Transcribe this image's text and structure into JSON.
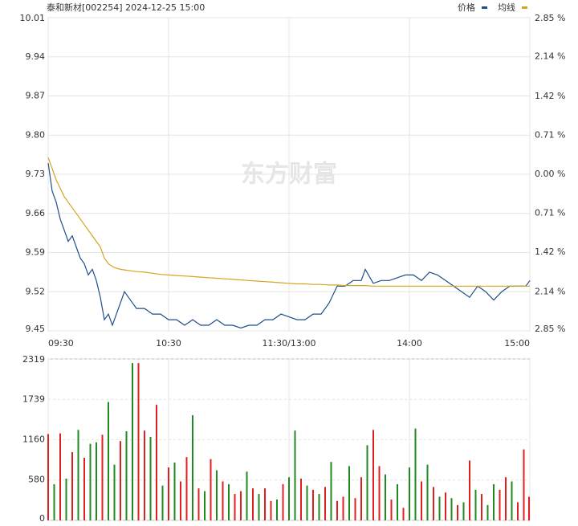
{
  "chart_data": [
    {
      "type": "line",
      "title": "泰和新材[002254] 2024-12-25 15:00",
      "watermark": "东方财富",
      "x": [
        0,
        2,
        4,
        6,
        8,
        10,
        12,
        14,
        16,
        18,
        20,
        22,
        24,
        26,
        28,
        30,
        32,
        34,
        36,
        38,
        40,
        44,
        48,
        52,
        56,
        60,
        64,
        68,
        72,
        76,
        80,
        84,
        88,
        92,
        96,
        100,
        104,
        108,
        112,
        116,
        120,
        124,
        128,
        132,
        136,
        140,
        144,
        148,
        152,
        156,
        158,
        162,
        166,
        170,
        174,
        178,
        182,
        186,
        190,
        194,
        198,
        202,
        206,
        210,
        214,
        218,
        222,
        226,
        230,
        234,
        238,
        240
      ],
      "xlim": [
        0,
        240
      ],
      "xticks": [
        {
          "value": 0,
          "label": "09:30"
        },
        {
          "value": 60,
          "label": "10:30"
        },
        {
          "value": 120,
          "label": "11:30/13:00"
        },
        {
          "value": 180,
          "label": "14:00"
        },
        {
          "value": 240,
          "label": "15:00"
        }
      ],
      "ylim": [
        9.45,
        10.01
      ],
      "yticks": [
        {
          "value": 10.01,
          "label": "10.01"
        },
        9.94,
        9.87,
        {
          "value": 9.8,
          "label": "9.80"
        },
        9.73,
        9.66,
        9.59,
        9.52,
        9.45
      ],
      "y2lim": [
        -2.85,
        2.85
      ],
      "y2ticks": [
        {
          "value": 2.85,
          "label": "2.85 %"
        },
        {
          "value": 2.14,
          "label": "2.14 %"
        },
        {
          "value": 1.42,
          "label": "1.42 %"
        },
        {
          "value": 0.71,
          "label": "0.71 %"
        },
        {
          "value": 0,
          "label": "0.00 %"
        },
        {
          "value": -0.71,
          "label": "0.71 %"
        },
        {
          "value": -1.42,
          "label": "1.42 %"
        },
        {
          "value": -2.14,
          "label": "2.14 %"
        },
        {
          "value": -2.85,
          "label": "2.85 %"
        }
      ],
      "up_color": "#e02020",
      "down_color": "#208a20",
      "flat_color": "#333333",
      "grid": true,
      "legend": "top-right",
      "series": [
        {
          "name": "价格",
          "color": "#1f4e8c",
          "values": [
            9.75,
            9.7,
            9.68,
            9.65,
            9.63,
            9.61,
            9.62,
            9.6,
            9.58,
            9.57,
            9.55,
            9.56,
            9.54,
            9.51,
            9.47,
            9.48,
            9.46,
            9.48,
            9.5,
            9.52,
            9.51,
            9.49,
            9.49,
            9.48,
            9.48,
            9.47,
            9.47,
            9.46,
            9.47,
            9.46,
            9.46,
            9.47,
            9.46,
            9.46,
            9.455,
            9.46,
            9.46,
            9.47,
            9.47,
            9.48,
            9.475,
            9.47,
            9.47,
            9.48,
            9.48,
            9.5,
            9.53,
            9.53,
            9.54,
            9.54,
            9.56,
            9.535,
            9.54,
            9.54,
            9.545,
            9.55,
            9.55,
            9.54,
            9.555,
            9.55,
            9.54,
            9.53,
            9.52,
            9.51,
            9.53,
            9.52,
            9.505,
            9.52,
            9.53,
            9.53,
            9.53,
            9.54
          ]
        },
        {
          "name": "均线",
          "color": "#d4a520",
          "values": [
            9.76,
            9.74,
            9.72,
            9.705,
            9.69,
            9.68,
            9.67,
            9.66,
            9.65,
            9.64,
            9.63,
            9.62,
            9.61,
            9.6,
            9.58,
            9.57,
            9.565,
            9.562,
            9.56,
            9.559,
            9.558,
            9.556,
            9.555,
            9.553,
            9.551,
            9.55,
            9.549,
            9.548,
            9.547,
            9.546,
            9.545,
            9.544,
            9.543,
            9.542,
            9.541,
            9.54,
            9.539,
            9.538,
            9.537,
            9.536,
            9.535,
            9.534,
            9.534,
            9.533,
            9.533,
            9.532,
            9.532,
            9.531,
            9.531,
            9.531,
            9.531,
            9.53,
            9.53,
            9.53,
            9.53,
            9.53,
            9.53,
            9.53,
            9.53,
            9.53,
            9.53,
            9.53,
            9.53,
            9.53,
            9.53,
            9.53,
            9.53,
            9.53,
            9.53,
            9.53,
            9.53,
            9.53
          ]
        }
      ]
    },
    {
      "type": "bar",
      "x": [
        0,
        3,
        6,
        9,
        12,
        15,
        18,
        21,
        24,
        27,
        30,
        33,
        36,
        39,
        42,
        45,
        48,
        51,
        54,
        57,
        60,
        63,
        66,
        69,
        72,
        75,
        78,
        81,
        84,
        87,
        90,
        93,
        96,
        99,
        102,
        105,
        108,
        111,
        114,
        117,
        120,
        123,
        126,
        129,
        132,
        135,
        138,
        141,
        144,
        147,
        150,
        153,
        156,
        159,
        162,
        165,
        168,
        171,
        174,
        177,
        180,
        183,
        186,
        189,
        192,
        195,
        198,
        201,
        204,
        207,
        210,
        213,
        216,
        219,
        222,
        225,
        228,
        231,
        234,
        237,
        240
      ],
      "xlim": [
        0,
        240
      ],
      "xticks": [
        0,
        60,
        120,
        180,
        240
      ],
      "ylim": [
        0,
        2319
      ],
      "yticks": [
        0,
        580,
        1160,
        1739,
        2319
      ],
      "grid": true,
      "values": [
        1240,
        520,
        1250,
        600,
        980,
        1300,
        900,
        1100,
        1120,
        1230,
        1700,
        800,
        1140,
        1280,
        2260,
        2260,
        1290,
        1200,
        1660,
        500,
        760,
        830,
        560,
        910,
        1510,
        460,
        420,
        880,
        720,
        560,
        520,
        380,
        420,
        700,
        460,
        380,
        460,
        280,
        300,
        520,
        620,
        1290,
        600,
        500,
        440,
        380,
        480,
        840,
        280,
        340,
        780,
        320,
        620,
        1080,
        1300,
        780,
        660,
        300,
        520,
        180,
        760,
        1320,
        560,
        800,
        480,
        340,
        400,
        320,
        220,
        260,
        860,
        440,
        380,
        220,
        520,
        440,
        620,
        560,
        260,
        1020,
        340
      ],
      "colors": [
        "#e02020",
        "#208a20",
        "#e02020",
        "#208a20",
        "#e02020",
        "#208a20",
        "#e02020",
        "#208a20",
        "#208a20",
        "#e02020",
        "#208a20",
        "#208a20",
        "#e02020",
        "#208a20",
        "#208a20",
        "#e02020",
        "#e02020",
        "#208a20",
        "#e02020",
        "#208a20",
        "#e02020",
        "#208a20",
        "#e02020",
        "#e02020",
        "#208a20",
        "#e02020",
        "#208a20",
        "#e02020",
        "#208a20",
        "#e02020",
        "#208a20",
        "#e02020",
        "#e02020",
        "#208a20",
        "#e02020",
        "#208a20",
        "#e02020",
        "#e02020",
        "#208a20",
        "#e02020",
        "#208a20",
        "#208a20",
        "#e02020",
        "#208a20",
        "#e02020",
        "#208a20",
        "#e02020",
        "#208a20",
        "#e02020",
        "#e02020",
        "#208a20",
        "#e02020",
        "#e02020",
        "#208a20",
        "#e02020",
        "#e02020",
        "#208a20",
        "#e02020",
        "#208a20",
        "#e02020",
        "#208a20",
        "#208a20",
        "#e02020",
        "#208a20",
        "#e02020",
        "#208a20",
        "#e02020",
        "#208a20",
        "#e02020",
        "#208a20",
        "#e02020",
        "#208a20",
        "#e02020",
        "#208a20",
        "#208a20",
        "#e02020",
        "#e02020",
        "#208a20",
        "#e02020",
        "#e02020",
        "#e02020"
      ]
    }
  ]
}
